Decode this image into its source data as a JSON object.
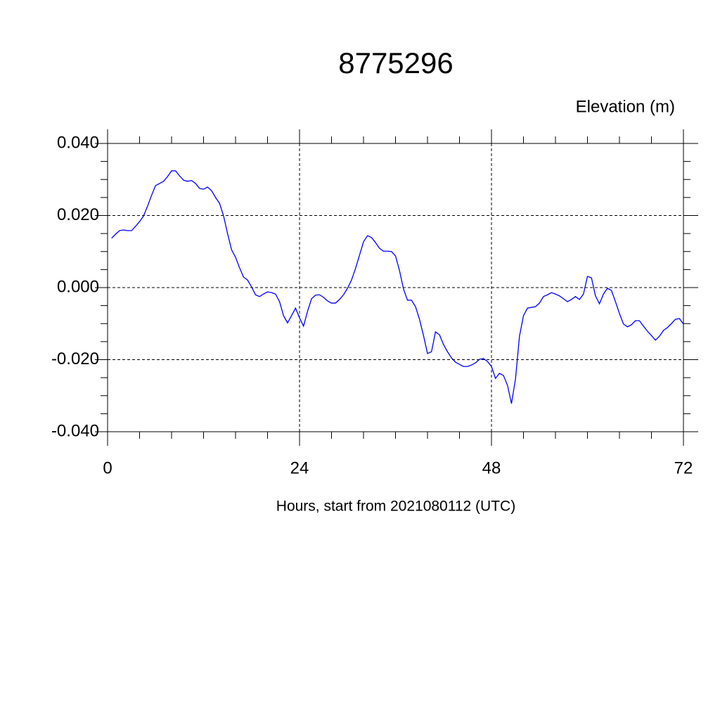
{
  "chart_data": {
    "type": "line",
    "title": "8775296",
    "subtitle": "Elevation (m)",
    "x_label": "Hours, start from 2021080112 (UTC)",
    "x": [
      0.5,
      1,
      1.5,
      2,
      2.5,
      3,
      3.5,
      4,
      4.5,
      5,
      5.5,
      6,
      6.5,
      7,
      7.5,
      8,
      8.5,
      9,
      9.5,
      10,
      10.5,
      11,
      11.5,
      12,
      12.5,
      13,
      13.5,
      14,
      14.5,
      15,
      15.5,
      16,
      16.5,
      17,
      17.5,
      18,
      18.5,
      19,
      19.5,
      20,
      20.5,
      21,
      21.5,
      22,
      22.5,
      23,
      23.5,
      24,
      24.5,
      25,
      25.5,
      26,
      26.5,
      27,
      27.5,
      28,
      28.5,
      29,
      29.5,
      30,
      30.5,
      31,
      31.5,
      32,
      32.5,
      33,
      33.5,
      34,
      34.5,
      35,
      35.5,
      36,
      36.5,
      37,
      37.5,
      38,
      38.5,
      39,
      39.5,
      40,
      40.5,
      41,
      41.5,
      42,
      42.5,
      43,
      43.5,
      44,
      44.5,
      45,
      45.5,
      46,
      46.5,
      47,
      47.5,
      48,
      48.5,
      49,
      49.5,
      50,
      50.5,
      51,
      51.5,
      52,
      52.5,
      53,
      53.5,
      54,
      54.5,
      55,
      55.5,
      56,
      56.5,
      57,
      57.5,
      58,
      58.5,
      59,
      59.5,
      60,
      60.5,
      61,
      61.5,
      62,
      62.5,
      63,
      63.5,
      64,
      64.5,
      65,
      65.5,
      66,
      66.5,
      67,
      67.5,
      68,
      68.5,
      69,
      69.5,
      70,
      70.5,
      71,
      71.5,
      72
    ],
    "series": [
      {
        "color": "#0000ff",
        "values": [
          0.0137,
          0.0148,
          0.0158,
          0.016,
          0.0158,
          0.0158,
          0.017,
          0.0183,
          0.0199,
          0.0226,
          0.0256,
          0.0283,
          0.0289,
          0.0295,
          0.0308,
          0.0324,
          0.0324,
          0.031,
          0.0298,
          0.0295,
          0.0297,
          0.0289,
          0.0275,
          0.0273,
          0.0279,
          0.0269,
          0.025,
          0.0234,
          0.0199,
          0.015,
          0.0105,
          0.0084,
          0.0055,
          0.0029,
          0.0021,
          0.0002,
          -0.002,
          -0.0025,
          -0.0018,
          -0.0012,
          -0.0014,
          -0.0018,
          -0.0039,
          -0.0078,
          -0.0098,
          -0.0078,
          -0.0057,
          -0.0084,
          -0.0107,
          -0.0066,
          -0.0031,
          -0.0021,
          -0.002,
          -0.0027,
          -0.0037,
          -0.0043,
          -0.0043,
          -0.0033,
          -0.002,
          -0.0002,
          0.0021,
          0.0053,
          0.009,
          0.0127,
          0.0144,
          0.0139,
          0.0125,
          0.0109,
          0.0101,
          0.0101,
          0.01,
          0.0088,
          0.0047,
          -0.0004,
          -0.0035,
          -0.0035,
          -0.0053,
          -0.0088,
          -0.0133,
          -0.0183,
          -0.0178,
          -0.0123,
          -0.0131,
          -0.0158,
          -0.0178,
          -0.0195,
          -0.0207,
          -0.0213,
          -0.0219,
          -0.0219,
          -0.0215,
          -0.0209,
          -0.0199,
          -0.0197,
          -0.0205,
          -0.0219,
          -0.0252,
          -0.0238,
          -0.0244,
          -0.0271,
          -0.0322,
          -0.0254,
          -0.0135,
          -0.0078,
          -0.0057,
          -0.0055,
          -0.0053,
          -0.0043,
          -0.0025,
          -0.002,
          -0.0014,
          -0.0018,
          -0.0023,
          -0.0031,
          -0.0039,
          -0.0033,
          -0.0025,
          -0.0033,
          -0.0018,
          0.0031,
          0.0027,
          -0.0023,
          -0.0045,
          -0.0018,
          -0.0002,
          -0.0008,
          -0.0039,
          -0.0072,
          -0.0101,
          -0.0109,
          -0.0103,
          -0.0092,
          -0.0092,
          -0.0107,
          -0.0121,
          -0.0133,
          -0.0146,
          -0.0135,
          -0.0119,
          -0.0111,
          -0.01,
          -0.0088,
          -0.0086,
          -0.0101
        ]
      }
    ],
    "xlim": [
      0,
      72
    ],
    "xticks": [
      0,
      24,
      48,
      72
    ],
    "xminorticks": [
      4,
      8,
      12,
      16,
      20,
      28,
      32,
      36,
      40,
      44,
      52,
      56,
      60,
      64,
      68
    ],
    "ylim": [
      -0.04,
      0.04
    ],
    "yticks": [
      {
        "value": 0.04,
        "label": "0.040"
      },
      {
        "value": 0.02,
        "label": "0.020"
      },
      {
        "value": 0,
        "label": "0.000"
      },
      {
        "value": -0.02,
        "label": "-0.020"
      },
      {
        "value": -0.04,
        "label": "-0.040"
      }
    ],
    "yminorticks": [
      0.035,
      0.03,
      0.025,
      0.015,
      0.01,
      0.005,
      -0.005,
      -0.01,
      -0.015,
      -0.025,
      -0.03,
      -0.035
    ],
    "grid": true
  }
}
